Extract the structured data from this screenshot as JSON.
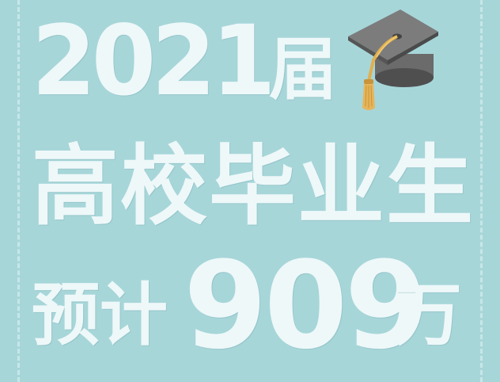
{
  "headline": {
    "year": "2021",
    "cohort": "届",
    "subject": "高校毕业生",
    "estimate": "预计",
    "number": "909",
    "unit": "万"
  },
  "colors": {
    "background": "#a7d6d9",
    "text": "#eef8f9",
    "border": "#c7e7e9"
  },
  "icons": {
    "cap": "graduation-cap-icon"
  }
}
